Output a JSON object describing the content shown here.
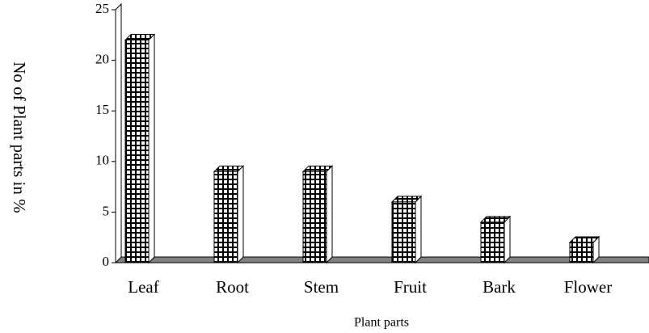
{
  "chart_data": {
    "type": "bar3d",
    "categories": [
      "Leaf",
      "Root",
      "Stem",
      "Fruit",
      "Bark",
      "Flower"
    ],
    "values": [
      22,
      9,
      9,
      6,
      4,
      2
    ],
    "color": "#000000",
    "ylim": [
      0,
      25
    ],
    "yticks": [
      0,
      5,
      10,
      15,
      20,
      25
    ],
    "y_label": "No of Plant parts in %",
    "x_label": "Plant parts"
  }
}
